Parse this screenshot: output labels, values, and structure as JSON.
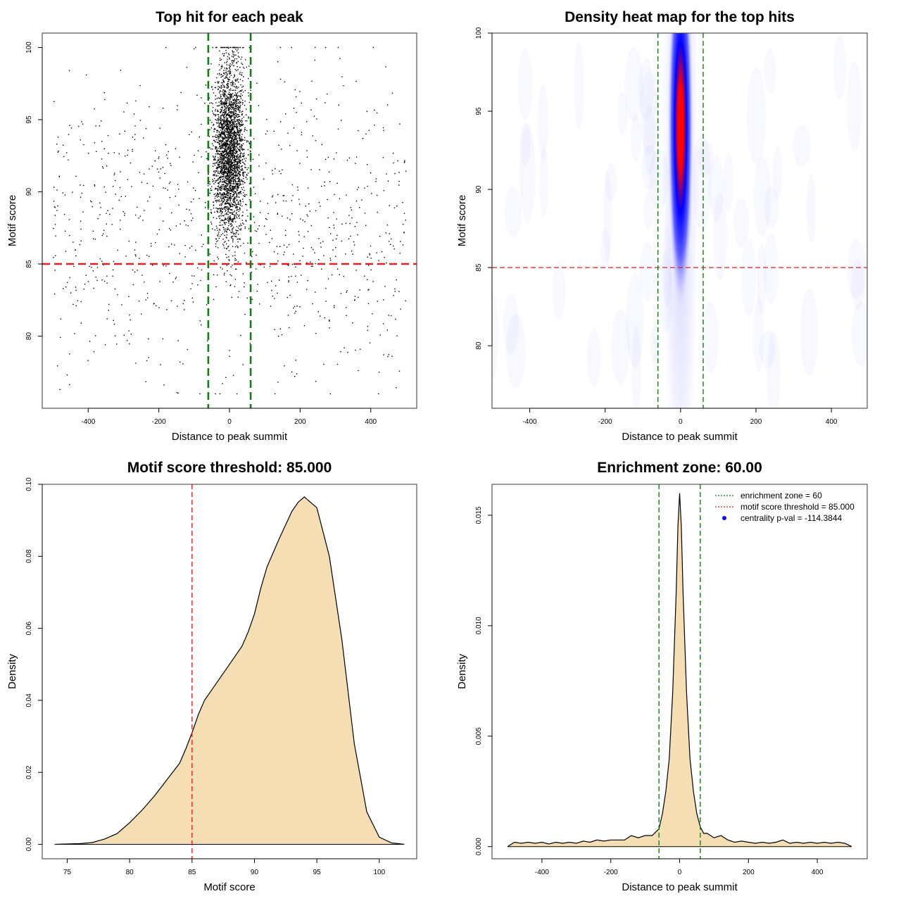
{
  "chart_data": [
    {
      "type": "scatter",
      "title": "Top hit for each peak",
      "xlabel": "Distance to peak summit",
      "ylabel": "Motif score",
      "xlim": [
        -530,
        530
      ],
      "ylim": [
        75,
        101
      ],
      "xticks": [
        -400,
        -200,
        0,
        200,
        400
      ],
      "yticks": [
        80,
        85,
        90,
        95,
        100
      ],
      "hlines": [
        {
          "y": 85,
          "color": "#e02020"
        }
      ],
      "vlines": [
        {
          "x": -60,
          "color": "#1a7a1a"
        },
        {
          "x": 60,
          "color": "#1a7a1a"
        }
      ],
      "point_color": "#000000",
      "distribution": {
        "central": {
          "count": 3000,
          "x_mean": 0,
          "x_sd": 22,
          "x_range": [
            -60,
            60
          ],
          "y_mean": 93,
          "y_sd": 3,
          "y_range": [
            78,
            100
          ]
        },
        "background": {
          "count": 900,
          "x_range": [
            -500,
            500
          ],
          "y_range": [
            76,
            100
          ],
          "y_mean": 88,
          "y_sd": 5
        }
      },
      "sample_points": [
        {
          "x": -480,
          "y": 76.3
        },
        {
          "x": -100,
          "y": 99.9
        },
        {
          "x": -405,
          "y": 98.1
        },
        {
          "x": 460,
          "y": 78.6
        },
        {
          "x": -140,
          "y": 78.2
        },
        {
          "x": 0,
          "y": 79.0
        }
      ]
    },
    {
      "type": "heatmap",
      "title": "Density heat map for the top hits",
      "xlabel": "Distance to peak summit",
      "ylabel": "Motif score",
      "xlim": [
        -500,
        495
      ],
      "ylim": [
        76,
        100
      ],
      "xticks": [
        -400,
        -200,
        0,
        200,
        400
      ],
      "yticks": [
        80,
        85,
        90,
        95,
        100
      ],
      "hlines": [
        {
          "y": 85,
          "color": "#e02020"
        }
      ],
      "vlines": [
        {
          "x": -60,
          "color": "#1a7a1a"
        },
        {
          "x": 60,
          "color": "#1a7a1a"
        }
      ],
      "colors": [
        "#ffffff",
        "#0000ff",
        "#ff0000"
      ],
      "peak": {
        "x": 0,
        "y": 94,
        "x_sd": 20,
        "y_sd": 4
      }
    },
    {
      "type": "area",
      "title": "Motif score threshold: 85.000",
      "xlabel": "Motif score",
      "ylabel": "Density",
      "xlim": [
        73,
        103
      ],
      "ylim": [
        -0.004,
        0.1
      ],
      "xticks": [
        75,
        80,
        85,
        90,
        95,
        100
      ],
      "yticks": [
        0.0,
        0.02,
        0.04,
        0.06,
        0.08,
        0.1
      ],
      "ytick_labels": [
        "0.00",
        "0.02",
        "0.04",
        "0.06",
        "0.08",
        "0.10"
      ],
      "vlines": [
        {
          "x": 85,
          "color": "#e02020"
        }
      ],
      "fill": "#f5deb3",
      "x": [
        74,
        76,
        77,
        78,
        79,
        80,
        81,
        82,
        83,
        84,
        84.5,
        85,
        85.5,
        86,
        87,
        88,
        89,
        89.5,
        90,
        90.5,
        91,
        92,
        93,
        93.5,
        94,
        95,
        96,
        97,
        98,
        99,
        100,
        101,
        102
      ],
      "y": [
        0.0,
        0.0002,
        0.0005,
        0.0015,
        0.003,
        0.006,
        0.0095,
        0.0135,
        0.018,
        0.0225,
        0.0265,
        0.031,
        0.036,
        0.04,
        0.045,
        0.05,
        0.055,
        0.059,
        0.064,
        0.071,
        0.077,
        0.085,
        0.0925,
        0.095,
        0.0965,
        0.0935,
        0.08,
        0.057,
        0.028,
        0.009,
        0.002,
        0.0004,
        0.0
      ]
    },
    {
      "type": "area",
      "title": "Enrichment zone: 60.00",
      "xlabel": "Distance to peak summit",
      "ylabel": "Density",
      "xlim": [
        -545,
        545
      ],
      "ylim": [
        -0.00055,
        0.0164
      ],
      "xticks": [
        -400,
        -200,
        0,
        200,
        400
      ],
      "yticks": [
        0.0,
        0.005,
        0.01,
        0.015
      ],
      "ytick_labels": [
        "0.000",
        "0.005",
        "0.010",
        "0.015"
      ],
      "vlines": [
        {
          "x": -60,
          "color": "#1a7a1a"
        },
        {
          "x": 60,
          "color": "#1a7a1a"
        }
      ],
      "fill": "#f5deb3",
      "x": [
        -500,
        -480,
        -460,
        -440,
        -420,
        -400,
        -380,
        -360,
        -340,
        -320,
        -300,
        -280,
        -260,
        -240,
        -220,
        -200,
        -180,
        -160,
        -140,
        -120,
        -100,
        -80,
        -60,
        -50,
        -40,
        -30,
        -20,
        -10,
        -5,
        0,
        5,
        10,
        20,
        30,
        40,
        50,
        60,
        70,
        80,
        100,
        120,
        140,
        160,
        180,
        200,
        220,
        240,
        260,
        280,
        300,
        320,
        340,
        360,
        380,
        400,
        420,
        440,
        460,
        480,
        500
      ],
      "y": [
        0.0,
        0.0002,
        0.00015,
        0.0002,
        0.00015,
        0.0002,
        0.00012,
        0.0002,
        0.00015,
        0.0002,
        0.00015,
        0.00025,
        0.0002,
        0.0003,
        0.00025,
        0.0003,
        0.0003,
        0.0003,
        0.0005,
        0.0004,
        0.0005,
        0.0005,
        0.0008,
        0.0015,
        0.0025,
        0.004,
        0.007,
        0.0115,
        0.0145,
        0.016,
        0.0145,
        0.0115,
        0.007,
        0.004,
        0.0025,
        0.0015,
        0.0009,
        0.0006,
        0.0006,
        0.0004,
        0.0005,
        0.0003,
        0.0002,
        0.00025,
        0.0002,
        0.00015,
        0.0002,
        0.00015,
        0.0002,
        0.0003,
        0.00015,
        0.0002,
        0.00015,
        0.0002,
        0.00015,
        0.0002,
        0.00015,
        0.0002,
        0.00015,
        0.0
      ],
      "legend": {
        "position": "top-right",
        "entries": [
          {
            "label": "enrichment zone = 60",
            "color": "#1a7a1a",
            "kind": "dotted-line"
          },
          {
            "label": "motif score threshold = 85.000",
            "color": "#e02020",
            "kind": "dotted-line"
          },
          {
            "label": "centrality p-val = -114.3844",
            "color": "#0000ff",
            "kind": "point"
          }
        ]
      }
    }
  ]
}
